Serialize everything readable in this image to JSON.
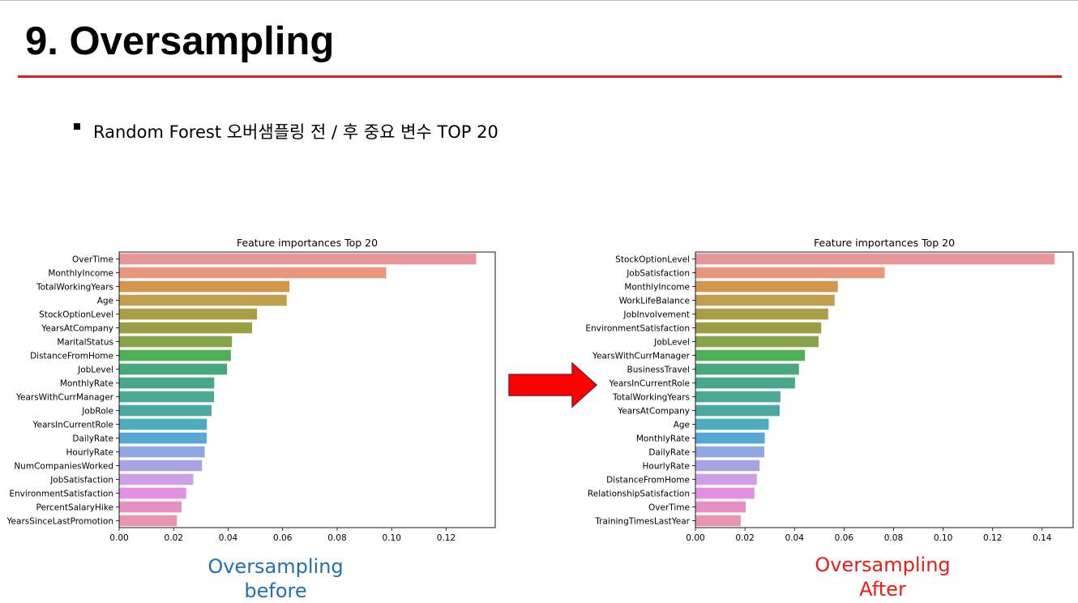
{
  "slide": {
    "title": "9. Oversampling",
    "subtitle": "Random Forest 오버샘플링 전 / 후 중요 변수 TOP 20",
    "caption_before": "Oversampling\nbefore",
    "caption_after": "Oversampling\nAfter",
    "colors": {
      "title_rule": "#e31b1b",
      "arrow": "#ff0000",
      "caption_before": "#1f6fb4",
      "caption_after": "#e3201a"
    }
  },
  "chart_data": [
    {
      "type": "bar",
      "orientation": "horizontal",
      "title": "Feature importances Top 20",
      "xlabel": "",
      "ylabel": "",
      "xlim": [
        0,
        0.138
      ],
      "xticks": [
        "0.00",
        "0.02",
        "0.04",
        "0.06",
        "0.08",
        "0.10",
        "0.12"
      ],
      "categories": [
        "OverTime",
        "MonthlyIncome",
        "TotalWorkingYears",
        "Age",
        "StockOptionLevel",
        "YearsAtCompany",
        "MaritalStatus",
        "DistanceFromHome",
        "JobLevel",
        "MonthlyRate",
        "YearsWithCurrManager",
        "JobRole",
        "YearsInCurrentRole",
        "DailyRate",
        "HourlyRate",
        "NumCompaniesWorked",
        "JobSatisfaction",
        "EnvironmentSatisfaction",
        "PercentSalaryHike",
        "YearsSinceLastPromotion"
      ],
      "values": [
        0.131,
        0.098,
        0.0625,
        0.0615,
        0.0506,
        0.0488,
        0.0414,
        0.041,
        0.0396,
        0.0349,
        0.0348,
        0.0339,
        0.0322,
        0.0321,
        0.0314,
        0.0304,
        0.0272,
        0.0246,
        0.0229,
        0.0212
      ],
      "grid": false,
      "legend": "none",
      "colors": [
        "#e8969a",
        "#e8967e",
        "#d4954f",
        "#c09e4d",
        "#a99e47",
        "#9a9e44",
        "#86a447",
        "#4faf53",
        "#48a87c",
        "#49a88a",
        "#4aa893",
        "#4aa8a0",
        "#4dadbe",
        "#58a8d6",
        "#8ea8e4",
        "#a9a3e6",
        "#cba0e4",
        "#e48ee4",
        "#e790c6",
        "#e896b0"
      ]
    },
    {
      "type": "bar",
      "orientation": "horizontal",
      "title": "Feature importances Top 20",
      "xlabel": "",
      "ylabel": "",
      "xlim": [
        0,
        0.1525
      ],
      "xticks": [
        "0.00",
        "0.02",
        "0.04",
        "0.06",
        "0.08",
        "0.10",
        "0.12",
        "0.14"
      ],
      "categories": [
        "StockOptionLevel",
        "JobSatisfaction",
        "MonthlyIncome",
        "WorkLifeBalance",
        "JobInvolvement",
        "EnvironmentSatisfaction",
        "JobLevel",
        "YearsWithCurrManager",
        "BusinessTravel",
        "YearsInCurrentRole",
        "TotalWorkingYears",
        "YearsAtCompany",
        "Age",
        "MonthlyRate",
        "DailyRate",
        "HourlyRate",
        "DistanceFromHome",
        "RelationshipSatisfaction",
        "OverTime",
        "TrainingTimesLastYear"
      ],
      "values": [
        0.145,
        0.0764,
        0.0575,
        0.0562,
        0.0536,
        0.0508,
        0.0497,
        0.0442,
        0.0418,
        0.0402,
        0.0343,
        0.034,
        0.0296,
        0.028,
        0.0278,
        0.0259,
        0.0248,
        0.0238,
        0.0203,
        0.0183
      ],
      "grid": false,
      "legend": "none",
      "colors": [
        "#e8969a",
        "#e8967e",
        "#d4954f",
        "#c09e4d",
        "#a99e47",
        "#9a9e44",
        "#86a447",
        "#4faf53",
        "#48a87c",
        "#49a88a",
        "#4aa893",
        "#4aa8a0",
        "#4dadbe",
        "#58a8d6",
        "#8ea8e4",
        "#a9a3e6",
        "#cba0e4",
        "#e48ee4",
        "#e790c6",
        "#e896b0"
      ]
    }
  ]
}
